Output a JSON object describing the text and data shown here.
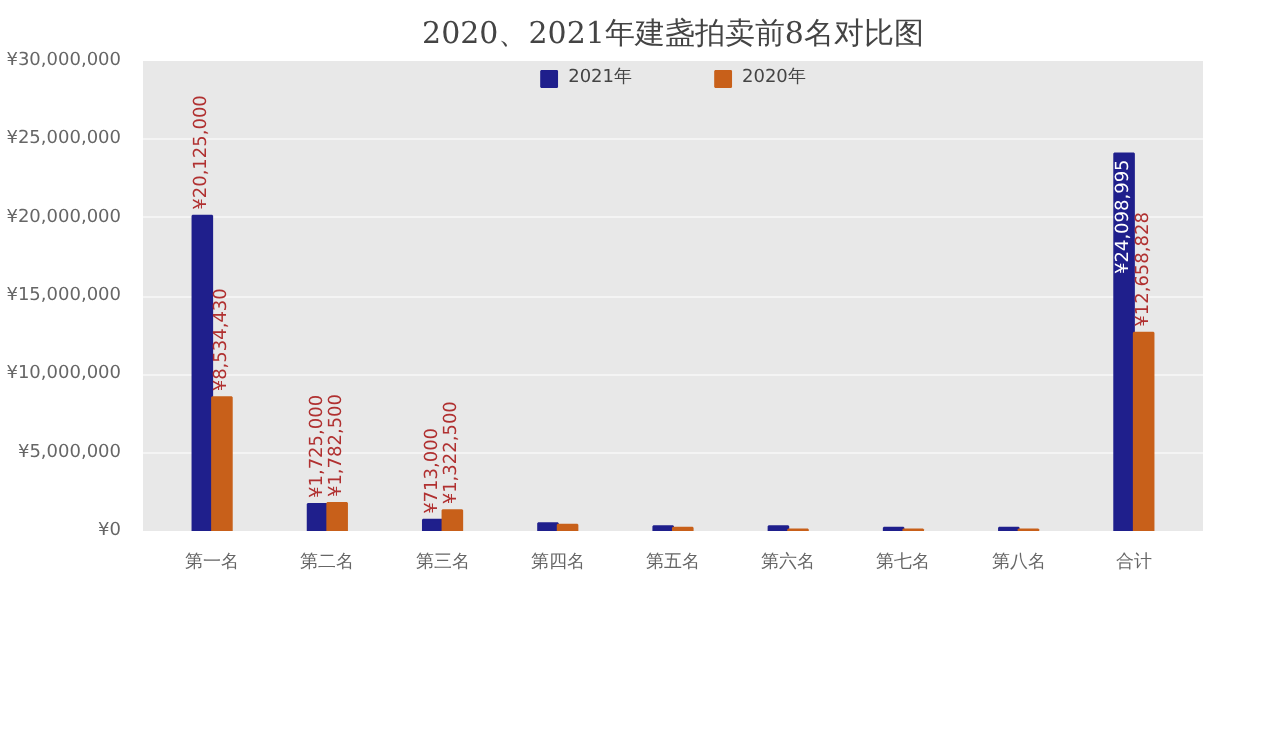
{
  "chart_data": {
    "type": "bar",
    "title": "2020、2021年建盏拍卖前8名对比图",
    "categories": [
      "第一名",
      "第二名",
      "第三名",
      "第四名",
      "第五名",
      "第六名",
      "第七名",
      "第八名",
      "合计"
    ],
    "series": [
      {
        "name": "2021年",
        "color": "#1f1f8c",
        "values": [
          20125000,
          1725000,
          713000,
          500000,
          300000,
          300000,
          200000,
          200000,
          24098995
        ],
        "value_labels": [
          "¥20,125,000",
          "¥1,725,000",
          "¥713,000",
          null,
          null,
          null,
          null,
          null,
          "¥24,098,995"
        ]
      },
      {
        "name": "2020年",
        "color": "#c8601a",
        "values": [
          8534430,
          1782500,
          1322500,
          400000,
          200000,
          100000,
          100000,
          100000,
          12658828
        ],
        "value_labels": [
          "¥8,534,430",
          "¥1,782,500",
          "¥1,322,500",
          null,
          null,
          null,
          null,
          null,
          "¥12,658,828"
        ]
      }
    ],
    "ylim": [
      0,
      30000000
    ],
    "yticks": [
      {
        "value": 0,
        "label": "¥0"
      },
      {
        "value": 5000000,
        "label": "¥5,000,000"
      },
      {
        "value": 10000000,
        "label": "¥10,000,000"
      },
      {
        "value": 15000000,
        "label": "¥15,000,000"
      },
      {
        "value": 20000000,
        "label": "¥20,000,000"
      },
      {
        "value": 25000000,
        "label": "¥25,000,000"
      },
      {
        "value": 30000000,
        "label": "¥30,000,000"
      }
    ],
    "grid": "y",
    "legend": "top"
  }
}
